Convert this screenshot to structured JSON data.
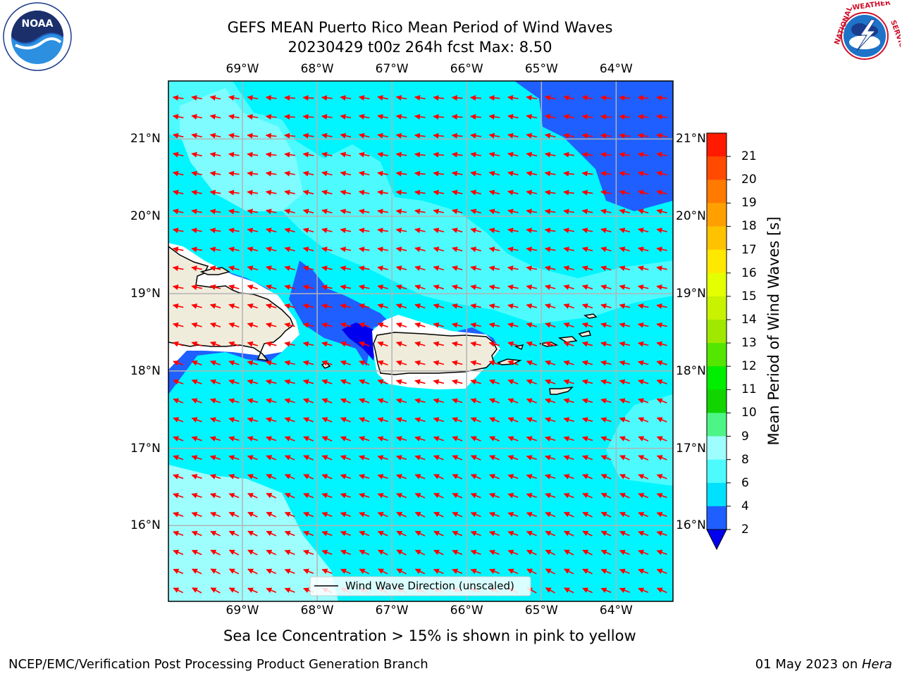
{
  "header": {
    "title_line1": "GEFS MEAN Puerto Rico Mean Period of Wind Waves",
    "title_line2": "20230429 t00z 264h fcst   Max: 8.50"
  },
  "logos": {
    "noaa_text": "NOAA",
    "noaa_ring_text": "NATIONAL OCEANIC AND ATMOSPHERIC ADMINISTRATION · U.S. DEPARTMENT OF COMMERCE",
    "nws_ring_text": "NATIONAL WEATHER SERVICE"
  },
  "map": {
    "lon_labels": [
      "69°W",
      "68°W",
      "67°W",
      "66°W",
      "65°W",
      "64°W"
    ],
    "lat_labels": [
      "21°N",
      "20°N",
      "19°N",
      "18°N",
      "17°N",
      "16°N"
    ],
    "lon_range": [
      -69.99,
      -63.24
    ],
    "lat_range": [
      15.02,
      21.75
    ],
    "legend_label": "Wind Wave Direction (unscaled)",
    "arrow_color": "#ff0000",
    "land_color": "#efecdc"
  },
  "colorbar": {
    "label": "Mean Period of Wind Waves [s]",
    "ticks": [
      "2",
      "4",
      "6",
      "8",
      "9",
      "10",
      "11",
      "12",
      "13",
      "14",
      "15",
      "16",
      "17",
      "18",
      "19",
      "20",
      "21"
    ],
    "colors": [
      "#1f5fff",
      "#00e0ff",
      "#4dfbff",
      "#9efefe",
      "#4df586",
      "#11d400",
      "#00ee00",
      "#55e600",
      "#a0e800",
      "#c8f200",
      "#e4ff00",
      "#ffe800",
      "#ffc200",
      "#ffa000",
      "#ff7a00",
      "#ff4a00",
      "#ff1a00"
    ],
    "extend_color": "#0000ee"
  },
  "chart_data": {
    "type": "heatmap",
    "title": "GEFS MEAN Puerto Rico Mean Period of Wind Waves",
    "subtitle": "20230429 t00z 264h fcst   Max: 8.50",
    "colorbar_label": "Mean Period of Wind Waves [s]",
    "levels": [
      2,
      4,
      6,
      8,
      9,
      10,
      11,
      12,
      13,
      14,
      15,
      16,
      17,
      18,
      19,
      20,
      21
    ],
    "max": 8.5
  },
  "footer": {
    "note": "Sea Ice Concentration > 15% is shown in pink to yellow",
    "branch": "NCEP/EMC/Verification Post Processing Product Generation Branch",
    "date": "01 May 2023 on ",
    "host": "Hera"
  }
}
